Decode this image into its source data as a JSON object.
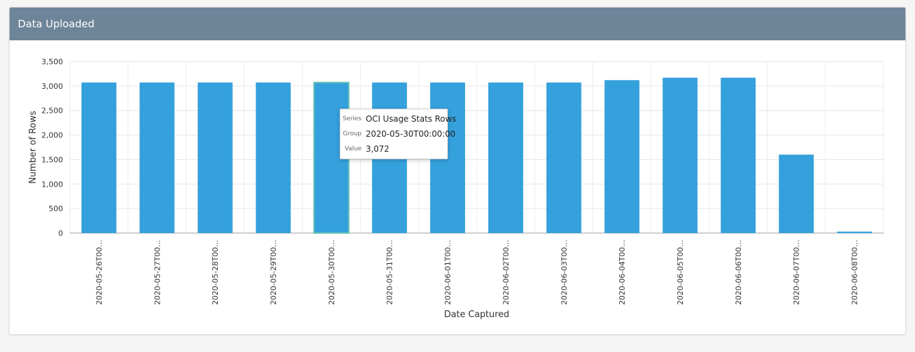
{
  "panel": {
    "title": "Data Uploaded"
  },
  "tooltip": {
    "series_key": "Series",
    "series_value": "OCI Usage Stats Rows",
    "group_key": "Group",
    "group_value": "2020-05-30T00:00:00",
    "value_key": "Value",
    "value_value": "3,072"
  },
  "colors": {
    "bar": "#34a0dc",
    "header": "#6e8498",
    "highlight": "#6bc3b4"
  },
  "chart_data": {
    "type": "bar",
    "title": "",
    "xlabel": "Date Captured",
    "ylabel": "Number of Rows",
    "ylim": [
      0,
      3500
    ],
    "yticks": [
      0,
      500,
      1000,
      1500,
      2000,
      2500,
      3000,
      3500
    ],
    "ytick_labels": [
      "0",
      "500",
      "1,000",
      "1,500",
      "2,000",
      "2,500",
      "3,000",
      "3,500"
    ],
    "grid": true,
    "categories": [
      "2020-05-26T00:00:00",
      "2020-05-27T00:00:00",
      "2020-05-28T00:00:00",
      "2020-05-29T00:00:00",
      "2020-05-30T00:00:00",
      "2020-05-31T00:00:00",
      "2020-06-01T00:00:00",
      "2020-06-02T00:00:00",
      "2020-06-03T00:00:00",
      "2020-06-04T00:00:00",
      "2020-06-05T00:00:00",
      "2020-06-06T00:00:00",
      "2020-06-07T00:00:00",
      "2020-06-08T00:00:00"
    ],
    "category_labels": [
      "2020-05-26T00...",
      "2020-05-27T00...",
      "2020-05-28T00...",
      "2020-05-29T00...",
      "2020-05-30T00...",
      "2020-05-31T00...",
      "2020-06-01T00...",
      "2020-06-02T00...",
      "2020-06-03T00...",
      "2020-06-04T00...",
      "2020-06-05T00...",
      "2020-06-06T00...",
      "2020-06-07T00...",
      "2020-06-08T00..."
    ],
    "series": [
      {
        "name": "OCI Usage Stats Rows",
        "values": [
          3072,
          3072,
          3072,
          3072,
          3072,
          3072,
          3072,
          3072,
          3072,
          3120,
          3170,
          3170,
          1600,
          30
        ]
      }
    ],
    "highlighted_index": 4
  }
}
